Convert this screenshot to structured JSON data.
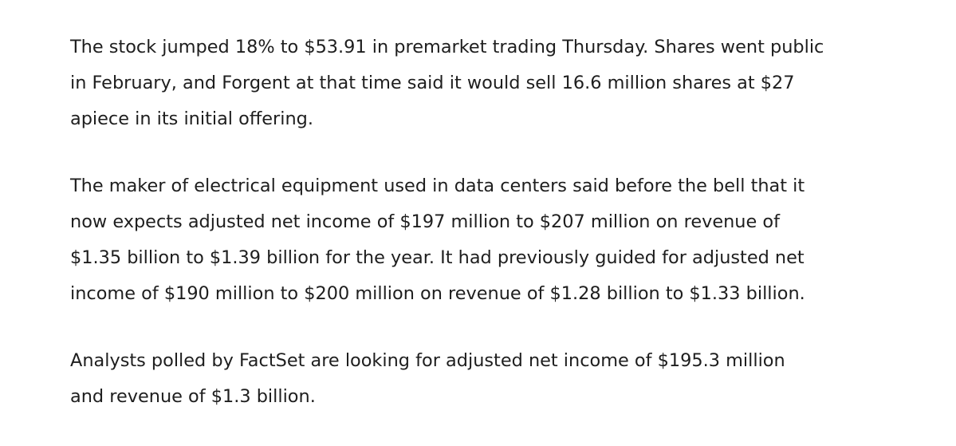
{
  "paragraphs": [
    {
      "lines": [
        "The stock jumped 18% to $53.91 in premarket trading Thursday. Shares went public",
        "in February, and Forgent at that time said it would sell 16.6 million shares at $27",
        "apiece in its initial offering."
      ]
    },
    {
      "lines": [
        "The maker of electrical equipment used in data centers said before the bell that it",
        "now expects adjusted net income of $197 million to $207 million on revenue of",
        "$1.35 billion to $1.39 billion for the year. It had previously guided for adjusted net",
        "income of $190 million to $200 million on revenue of $1.28 billion to $1.33 billion."
      ]
    },
    {
      "lines": [
        "Analysts polled by FactSet are looking for adjusted net income of $195.3 million",
        "and revenue of $1.3 billion."
      ]
    }
  ]
}
